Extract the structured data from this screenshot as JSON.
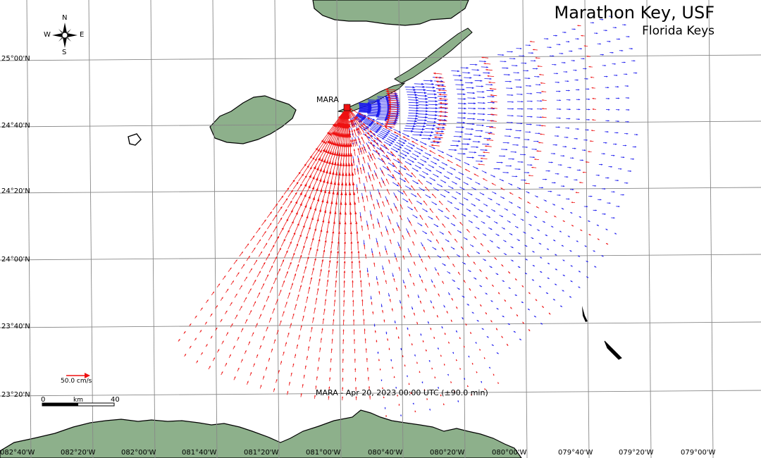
{
  "title": "Marathon Key, USF",
  "subtitle": "Florida Keys",
  "caption": "MARA - Apr 20, 2023 00:00 UTC (±90.0 min)",
  "station": {
    "name": "MARA",
    "marker_color": "#ee1111"
  },
  "legend": {
    "vector_label": "50.0 cm/s",
    "vector_color": "#ee1111"
  },
  "scale_bar": {
    "unit": "km",
    "start": "0",
    "end": "40"
  },
  "compass": {
    "n": "N",
    "s": "S",
    "e": "E",
    "w": "W",
    "icon": "compass-rose-icon"
  },
  "latitude_labels": [
    "25°00'N",
    "24°40'N",
    "24°20'N",
    "24°00'N",
    "23°40'N",
    "23°20'N"
  ],
  "longitude_labels": [
    "082°40'W",
    "082°20'W",
    "082°00'W",
    "081°40'W",
    "081°20'W",
    "081°00'W",
    "080°40'W",
    "080°20'W",
    "080°00'W",
    "079°40'W",
    "079°20'W",
    "079°00'W"
  ],
  "colors": {
    "land": "#8db08b",
    "water": "#ffffff",
    "grid": "#888888",
    "vector_red": "#ee1111",
    "vector_blue": "#1a1aee"
  }
}
